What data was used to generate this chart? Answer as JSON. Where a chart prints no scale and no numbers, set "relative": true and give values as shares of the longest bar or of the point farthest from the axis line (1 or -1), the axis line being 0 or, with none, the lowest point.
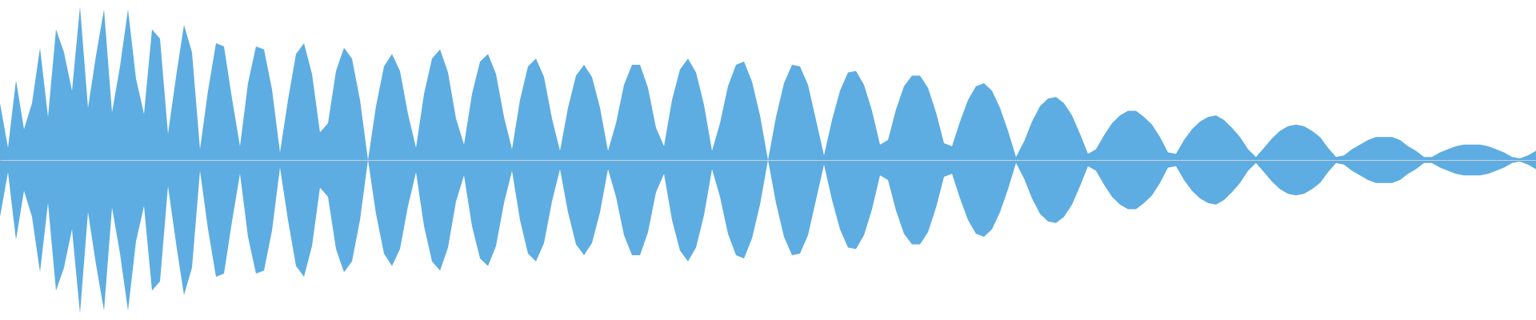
{
  "chart_data": {
    "type": "area",
    "relative": true,
    "categories": [
      null,
      null,
      null,
      null,
      null,
      null,
      null,
      null,
      null,
      null,
      null,
      null,
      null,
      null,
      null,
      null,
      null,
      null,
      null,
      null,
      null,
      null,
      null,
      null,
      null,
      null,
      null,
      null,
      null,
      null,
      null,
      null,
      null,
      null,
      null,
      null,
      null,
      null,
      null,
      null,
      null,
      null,
      null,
      null,
      null,
      null,
      null,
      null,
      null,
      null,
      null,
      null,
      null,
      null,
      null,
      null,
      null,
      null,
      null,
      null,
      null,
      null,
      null,
      null,
      null,
      null,
      null,
      null,
      null,
      null,
      null,
      null,
      null,
      null,
      null,
      null,
      null,
      null,
      null,
      null,
      null,
      null,
      null,
      null,
      null,
      null,
      null,
      null,
      null,
      null,
      null,
      null,
      null,
      null,
      null,
      null,
      null,
      null,
      null,
      null,
      null,
      null,
      null,
      null,
      null,
      null,
      null,
      null,
      null,
      null,
      null,
      null,
      null,
      null,
      null,
      null,
      null,
      null,
      null,
      null,
      null,
      null,
      null,
      null,
      null,
      null,
      null,
      null,
      null,
      null,
      null,
      null,
      null,
      null,
      null,
      null,
      null,
      null,
      null,
      null,
      null,
      null,
      null,
      null,
      null,
      null,
      null,
      null,
      null,
      null,
      null,
      null,
      null,
      null,
      null,
      null,
      null,
      null,
      null,
      null,
      null,
      null,
      null,
      null,
      null,
      null,
      null,
      null,
      null,
      null,
      null,
      null,
      null,
      null,
      null,
      null,
      null,
      null,
      null,
      null,
      null,
      null,
      null,
      null,
      null,
      null,
      null,
      null,
      null,
      null,
      null,
      null,
      null
    ],
    "series": [
      {
        "color": "#5dade2",
        "values": [
          0.37,
          0.08,
          0.52,
          0.2,
          0.37,
          0.73,
          0.28,
          0.85,
          0.7,
          0.45,
          1,
          0.34,
          0.68,
          0.98,
          0.31,
          0.61,
          0.98,
          0.53,
          0.3,
          0.85,
          0.79,
          0.17,
          0.54,
          0.88,
          0.7,
          0.07,
          0.45,
          0.76,
          0.74,
          0.4,
          0.09,
          0.5,
          0.74,
          0.72,
          0.46,
          0.05,
          0.39,
          0.69,
          0.76,
          0.56,
          0.18,
          0.24,
          0.58,
          0.73,
          0.66,
          0.39,
          0,
          0.35,
          0.61,
          0.69,
          0.58,
          0.3,
          0.08,
          0.43,
          0.66,
          0.72,
          0.57,
          0.27,
          0.1,
          0.43,
          0.64,
          0.69,
          0.56,
          0.28,
          0.07,
          0.39,
          0.61,
          0.66,
          0.54,
          0.27,
          0.06,
          0.34,
          0.55,
          0.62,
          0.54,
          0.34,
          0.06,
          0.24,
          0.49,
          0.62,
          0.62,
          0.47,
          0.21,
          0.09,
          0.39,
          0.59,
          0.66,
          0.57,
          0.36,
          0.06,
          0.24,
          0.48,
          0.62,
          0.64,
          0.51,
          0.29,
          0,
          0.28,
          0.5,
          0.62,
          0.61,
          0.49,
          0.26,
          0.03,
          0.26,
          0.45,
          0.57,
          0.58,
          0.49,
          0.32,
          0.1,
          0.13,
          0.33,
          0.48,
          0.55,
          0.55,
          0.47,
          0.31,
          0.11,
          0.09,
          0.25,
          0.39,
          0.48,
          0.5,
          0.45,
          0.34,
          0.19,
          0.02,
          0.12,
          0.25,
          0.35,
          0.4,
          0.41,
          0.37,
          0.29,
          0.17,
          0.04,
          0.07,
          0.16,
          0.24,
          0.29,
          0.32,
          0.32,
          0.28,
          0.23,
          0.15,
          0.05,
          0.04,
          0.13,
          0.2,
          0.25,
          0.28,
          0.29,
          0.26,
          0.21,
          0.15,
          0.07,
          0.02,
          0.08,
          0.14,
          0.19,
          0.22,
          0.23,
          0.22,
          0.19,
          0.15,
          0.08,
          0.02,
          0.03,
          0.07,
          0.1,
          0.13,
          0.15,
          0.15,
          0.15,
          0.13,
          0.09,
          0.06,
          0.02,
          0.02,
          0.05,
          0.07,
          0.09,
          0.1,
          0.1,
          0.1,
          0.09,
          0.07,
          0.05,
          0.02,
          0.01,
          0.03,
          0.06
        ]
      },
      {
        "color": "#5dade2",
        "values": [
          -0.37,
          -0.08,
          -0.52,
          -0.2,
          -0.37,
          -0.73,
          -0.28,
          -0.85,
          -0.7,
          -0.45,
          -1,
          -0.34,
          -0.68,
          -0.98,
          -0.31,
          -0.61,
          -0.98,
          -0.53,
          -0.3,
          -0.85,
          -0.79,
          -0.17,
          -0.54,
          -0.88,
          -0.7,
          -0.07,
          -0.45,
          -0.76,
          -0.74,
          -0.4,
          -0.09,
          -0.5,
          -0.74,
          -0.72,
          -0.46,
          -0.05,
          -0.39,
          -0.69,
          -0.76,
          -0.56,
          -0.18,
          -0.24,
          -0.58,
          -0.73,
          -0.66,
          -0.39,
          0,
          -0.35,
          -0.61,
          -0.69,
          -0.58,
          -0.3,
          -0.08,
          -0.43,
          -0.66,
          -0.72,
          -0.57,
          -0.27,
          -0.1,
          -0.43,
          -0.64,
          -0.69,
          -0.56,
          -0.28,
          -0.07,
          -0.39,
          -0.61,
          -0.66,
          -0.54,
          -0.27,
          -0.06,
          -0.34,
          -0.55,
          -0.62,
          -0.54,
          -0.34,
          -0.06,
          -0.24,
          -0.49,
          -0.62,
          -0.62,
          -0.47,
          -0.21,
          -0.09,
          -0.39,
          -0.59,
          -0.66,
          -0.57,
          -0.36,
          -0.06,
          -0.24,
          -0.48,
          -0.62,
          -0.64,
          -0.51,
          -0.29,
          0,
          -0.28,
          -0.5,
          -0.62,
          -0.61,
          -0.49,
          -0.26,
          -0.03,
          -0.26,
          -0.45,
          -0.57,
          -0.58,
          -0.49,
          -0.32,
          -0.1,
          -0.13,
          -0.33,
          -0.48,
          -0.55,
          -0.55,
          -0.47,
          -0.31,
          -0.11,
          -0.09,
          -0.25,
          -0.39,
          -0.48,
          -0.5,
          -0.45,
          -0.34,
          -0.19,
          -0.02,
          -0.12,
          -0.25,
          -0.35,
          -0.4,
          -0.41,
          -0.37,
          -0.29,
          -0.17,
          -0.04,
          -0.07,
          -0.16,
          -0.24,
          -0.29,
          -0.32,
          -0.32,
          -0.28,
          -0.23,
          -0.15,
          -0.05,
          -0.04,
          -0.13,
          -0.2,
          -0.25,
          -0.28,
          -0.29,
          -0.26,
          -0.21,
          -0.15,
          -0.07,
          -0.02,
          -0.08,
          -0.14,
          -0.19,
          -0.22,
          -0.23,
          -0.22,
          -0.19,
          -0.15,
          -0.08,
          -0.02,
          -0.03,
          -0.07,
          -0.1,
          -0.13,
          -0.15,
          -0.15,
          -0.15,
          -0.13,
          -0.09,
          -0.06,
          -0.02,
          -0.02,
          -0.05,
          -0.07,
          -0.09,
          -0.1,
          -0.1,
          -0.1,
          -0.09,
          -0.07,
          -0.05,
          -0.02,
          -0.01,
          -0.03,
          -0.06
        ]
      }
    ]
  }
}
